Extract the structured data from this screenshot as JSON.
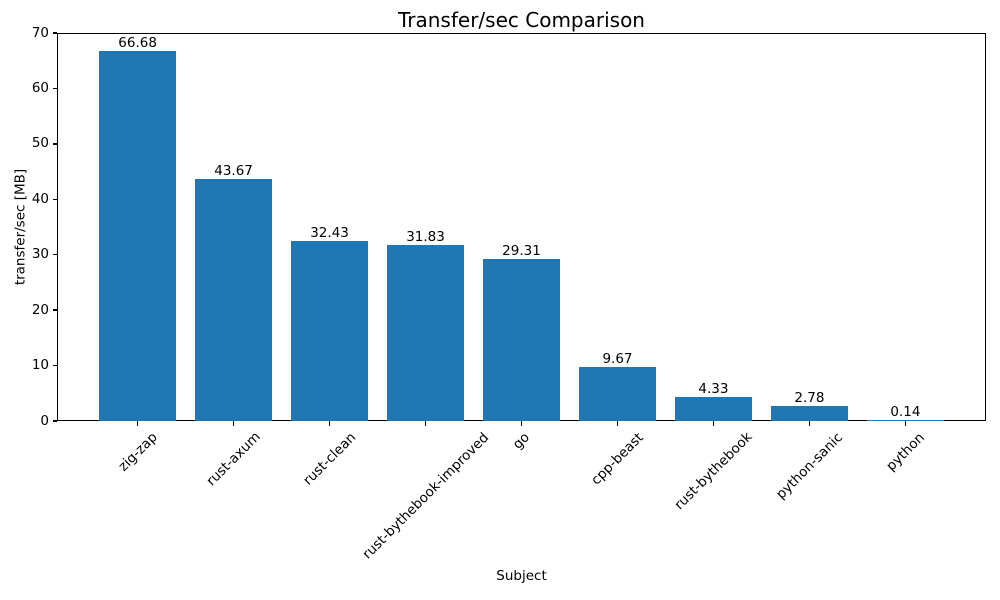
{
  "chart_data": {
    "type": "bar",
    "title": "Transfer/sec Comparison",
    "xlabel": "Subject",
    "ylabel": "transfer/sec [MB]",
    "categories": [
      "zig-zap",
      "rust-axum",
      "rust-clean",
      "rust-bythebook-improved",
      "go",
      "cpp-beast",
      "rust-bythebook",
      "python-sanic",
      "python"
    ],
    "values": [
      66.68,
      43.67,
      32.43,
      31.83,
      29.31,
      9.67,
      4.33,
      2.78,
      0.14
    ],
    "value_labels": [
      "66.68",
      "43.67",
      "32.43",
      "31.83",
      "29.31",
      "9.67",
      "4.33",
      "2.78",
      "0.14"
    ],
    "ylim": [
      0,
      70
    ],
    "yticks": [
      0,
      10,
      20,
      30,
      40,
      50,
      60,
      70
    ],
    "xlim": [
      -0.84,
      8.84
    ],
    "bar_width_units": 0.8,
    "bar_color": "#1f77b4",
    "grid": false,
    "legend_position": "none",
    "x_label_rotation_deg": 45
  }
}
